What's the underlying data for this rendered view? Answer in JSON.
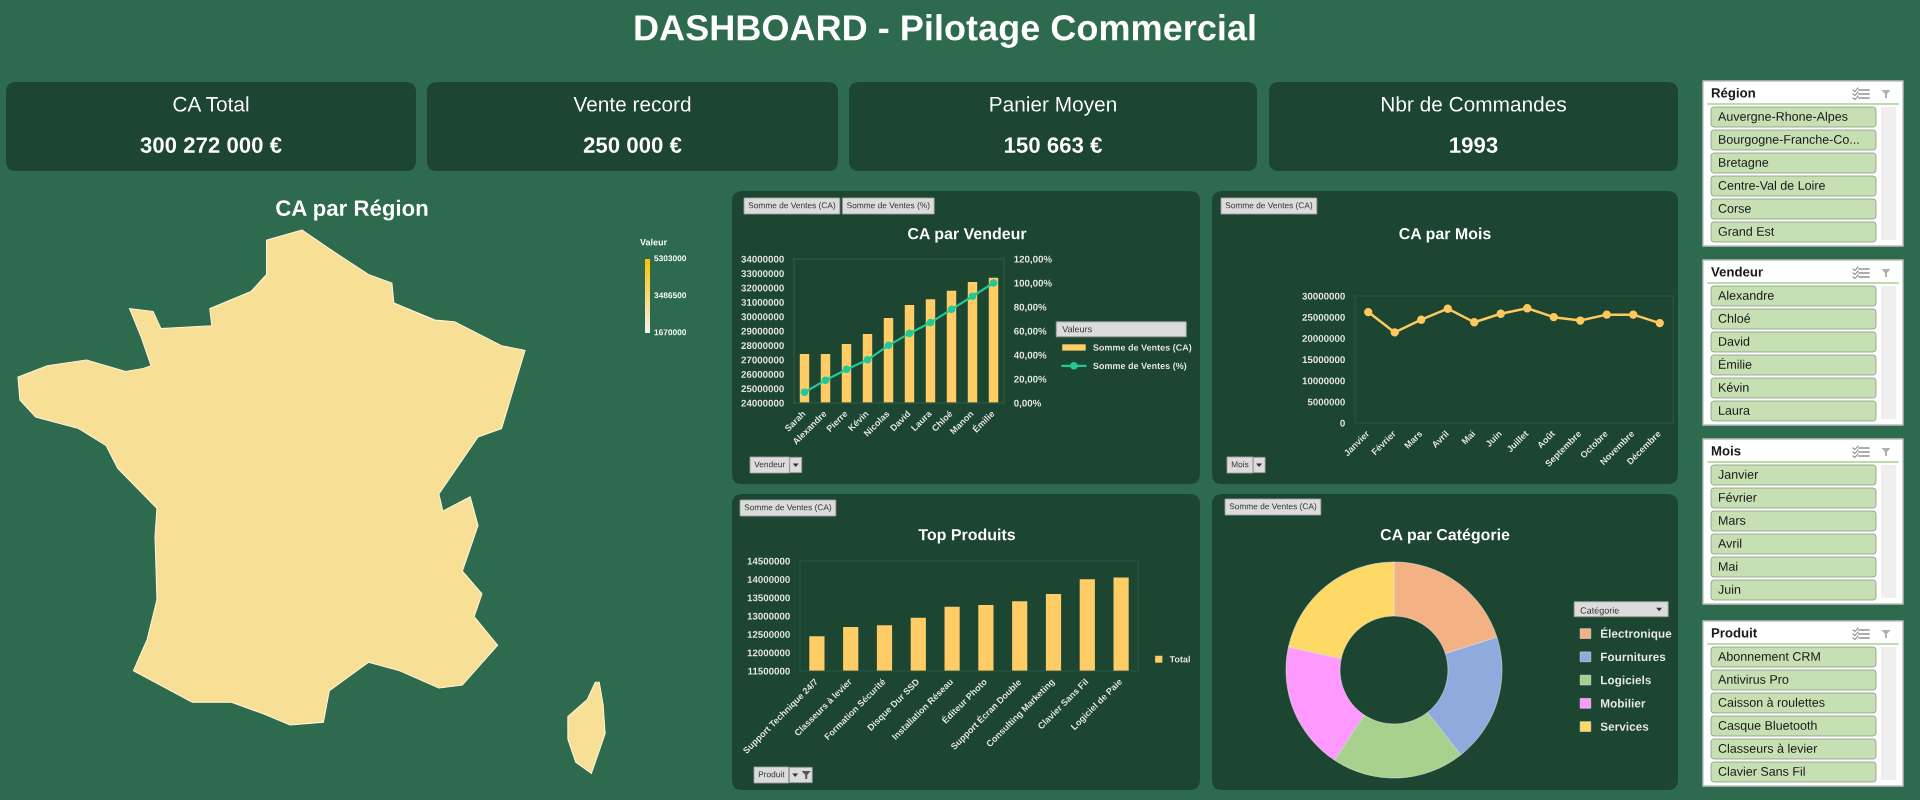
{
  "chart_data": [
    {
      "type": "other",
      "title": "DASHBOARD - Pilotage Commercial"
    },
    {
      "type": "other",
      "title": "CA Total",
      "annotations": [
        "300 272 000 €"
      ]
    },
    {
      "type": "other",
      "title": "Vente record",
      "annotations": [
        "250 000 €"
      ]
    },
    {
      "type": "other",
      "title": "Panier Moyen",
      "annotations": [
        "150 663 €"
      ]
    },
    {
      "type": "other",
      "title": "Nbr de Commandes",
      "annotations": [
        "1993"
      ]
    },
    {
      "type": "other",
      "title": "CA par Région",
      "clabel": "Valeur",
      "annotations": [
        "5303000",
        "3486500",
        "1670000"
      ]
    },
    {
      "type": "bar",
      "title": "CA par Vendeur",
      "categories": [
        "Sarah",
        "Alexandre",
        "Pierre",
        "Kévin",
        "Nicolas",
        "David",
        "Laura",
        "Chloé",
        "Manon",
        "Émilie"
      ],
      "series": [
        {
          "name": "Somme de Ventes (CA)",
          "type": "bar",
          "color": "#ffcc66",
          "values": [
            27400000,
            27400000,
            28100000,
            28800000,
            29900000,
            30800000,
            31200000,
            31800000,
            32400000,
            32700000
          ]
        },
        {
          "name": "Somme de Ventes (%)",
          "type": "line",
          "axis": "y2",
          "color": "#22c997",
          "values": [
            9,
            19,
            28,
            36,
            48,
            58,
            67,
            78,
            89,
            100
          ]
        }
      ],
      "ylim": [
        24000000,
        34000000
      ],
      "yticks": [
        24000000,
        25000000,
        26000000,
        27000000,
        28000000,
        29000000,
        30000000,
        31000000,
        32000000,
        33000000,
        34000000
      ],
      "y2lim": [
        0,
        120
      ],
      "y2ticks": [
        {
          "value": 0,
          "label": "0,00%"
        },
        {
          "value": 20,
          "label": "20,00%"
        },
        {
          "value": 40,
          "label": "40,00%"
        },
        {
          "value": 60,
          "label": "60,00%"
        },
        {
          "value": 80,
          "label": "80,00%"
        },
        {
          "value": 100,
          "label": "100,00%"
        },
        {
          "value": 120,
          "label": "120,00%"
        }
      ],
      "marker": "circle",
      "legend": "right",
      "legend_title": "Valeurs",
      "annotations": [
        "Somme de Ventes (CA)",
        "Somme de Ventes (%)",
        "Vendeur"
      ]
    },
    {
      "type": "line",
      "title": "CA par Mois",
      "categories": [
        "Janvier",
        "Février",
        "Mars",
        "Avril",
        "Mai",
        "Juin",
        "Juillet",
        "Août",
        "Septembre",
        "Octobre",
        "Novembre",
        "Décembre"
      ],
      "values": [
        26200000,
        21400000,
        24400000,
        27000000,
        23800000,
        25800000,
        27100000,
        25000000,
        24200000,
        25600000,
        25600000,
        23600000
      ],
      "color": "#ffc95e",
      "ylim": [
        0,
        30000000
      ],
      "yticks": [
        0,
        5000000,
        10000000,
        15000000,
        20000000,
        25000000,
        30000000
      ],
      "marker": "circle",
      "annotations": [
        "Somme de Ventes (CA)",
        "Mois"
      ]
    },
    {
      "type": "bar",
      "title": "Top Produits",
      "categories": [
        "Support Technique 24/7",
        "Classeurs à levier",
        "Formation Sécurité",
        "Disque Dur SSD",
        "Installation Réseau",
        "Éditeur Photo",
        "Support Écran Double",
        "Consulting Marketing",
        "Clavier Sans Fil",
        "Logiciel de Paie"
      ],
      "series": [
        {
          "name": "Total",
          "color": "#ffcc66",
          "values": [
            12450000,
            12700000,
            12750000,
            12950000,
            13250000,
            13300000,
            13400000,
            13600000,
            14000000,
            14050000
          ]
        }
      ],
      "ylim": [
        11500000,
        14500000
      ],
      "yticks": [
        11500000,
        12000000,
        12500000,
        13000000,
        13500000,
        14000000,
        14500000
      ],
      "legend": "right",
      "annotations": [
        "Somme de Ventes (CA)",
        "Produit"
      ]
    },
    {
      "type": "donut",
      "title": "CA par Catégorie",
      "categories": [
        "Électronique",
        "Fournitures",
        "Logiciels",
        "Mobilier",
        "Services"
      ],
      "values": [
        20.1,
        19.3,
        19.9,
        19.1,
        21.6
      ],
      "colors": [
        "#f4b183",
        "#8faadc",
        "#a9d18e",
        "#ff99ff",
        "#ffd966"
      ],
      "legend": "right",
      "legend_title": "Catégorie",
      "annotations": [
        "Somme de Ventes (CA)"
      ]
    },
    {
      "type": "other",
      "title": "Région",
      "annotations": [
        "Auvergne-Rhone-Alpes",
        "Bourgogne-Franche-Co...",
        "Bretagne",
        "Centre-Val de Loire",
        "Corse",
        "Grand Est"
      ]
    },
    {
      "type": "other",
      "title": "Vendeur",
      "annotations": [
        "Alexandre",
        "Chloé",
        "David",
        "Émilie",
        "Kévin",
        "Laura"
      ]
    },
    {
      "type": "other",
      "title": "Mois",
      "annotations": [
        "Janvier",
        "Février",
        "Mars",
        "Avril",
        "Mai",
        "Juin"
      ]
    },
    {
      "type": "other",
      "title": "Produit",
      "annotations": [
        "Abonnement CRM",
        "Antivirus Pro",
        "Caisson à roulettes",
        "Casque Bluetooth",
        "Classeurs à levier",
        "Clavier Sans Fil"
      ]
    }
  ]
}
